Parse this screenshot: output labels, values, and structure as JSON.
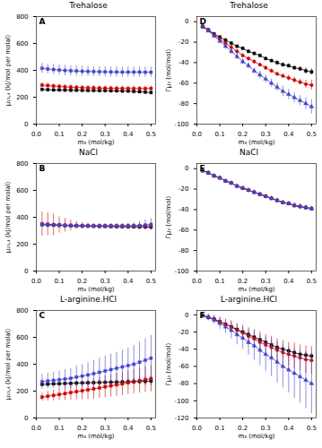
{
  "chart_data": [
    {
      "type": "line",
      "title": "Trehalose",
      "annotation": "A",
      "xlabel": "m₃ (mol/kg)",
      "ylabel": "μ₂₃,₄ (kJ/mol per molal)",
      "x": [
        0.025,
        0.05,
        0.075,
        0.1,
        0.125,
        0.15,
        0.175,
        0.2,
        0.225,
        0.25,
        0.275,
        0.3,
        0.325,
        0.35,
        0.375,
        0.4,
        0.425,
        0.45,
        0.475,
        0.5
      ],
      "xlim": [
        0.0,
        0.52
      ],
      "xticks": [
        {
          "value": 0,
          "label": "0.0"
        },
        0.1,
        0.2,
        0.3,
        0.4,
        0.5
      ],
      "ylim": [
        0,
        800
      ],
      "yticks": [
        0,
        200,
        400,
        600,
        800
      ],
      "grid": false,
      "series": [
        {
          "color": "#000000",
          "marker": "square",
          "values": [
            258,
            256,
            254,
            254,
            253,
            252,
            252,
            251,
            250,
            250,
            249,
            249,
            248,
            247,
            246,
            246,
            243,
            241,
            238,
            235
          ],
          "errors": [
            8,
            7,
            7,
            7,
            7,
            7,
            7,
            7,
            7,
            7,
            7,
            7,
            7,
            7,
            7,
            7,
            7,
            7,
            7,
            7
          ]
        },
        {
          "color": "#CC0000",
          "marker": "square",
          "values": [
            290,
            287,
            283,
            280,
            277,
            275,
            273,
            271,
            270,
            269,
            268,
            267,
            266,
            266,
            265,
            265,
            264,
            264,
            264,
            265
          ],
          "errors": [
            18,
            18,
            18,
            18,
            18,
            18,
            18,
            18,
            18,
            18,
            18,
            18,
            18,
            18,
            18,
            18,
            18,
            18,
            18,
            20
          ]
        },
        {
          "color": "#4444CC",
          "marker": "square",
          "values": [
            415,
            410,
            406,
            402,
            399,
            397,
            395,
            393,
            392,
            391,
            390,
            389,
            388,
            388,
            387,
            387,
            387,
            387,
            386,
            386
          ],
          "errors": [
            38,
            38,
            38,
            38,
            38,
            38,
            38,
            38,
            38,
            38,
            38,
            38,
            38,
            38,
            38,
            38,
            38,
            38,
            38,
            38
          ]
        }
      ]
    },
    {
      "type": "line",
      "title": "NaCl",
      "annotation": "B",
      "xlabel": "m₃ (mol/kg)",
      "ylabel": "μ₂₃,₄ (kJ/mol per molal)",
      "x": [
        0.025,
        0.05,
        0.075,
        0.1,
        0.125,
        0.15,
        0.175,
        0.2,
        0.225,
        0.25,
        0.275,
        0.3,
        0.325,
        0.35,
        0.375,
        0.4,
        0.425,
        0.45,
        0.475,
        0.5
      ],
      "xlim": [
        0.0,
        0.52
      ],
      "xticks": [
        {
          "value": 0,
          "label": "0.0"
        },
        0.1,
        0.2,
        0.3,
        0.4,
        0.5
      ],
      "ylim": [
        0,
        800
      ],
      "yticks": [
        0,
        200,
        400,
        600,
        800
      ],
      "grid": false,
      "series": [
        {
          "color": "#000000",
          "marker": "square",
          "values": [
            345,
            343,
            341,
            340,
            338,
            337,
            336,
            335,
            334,
            333,
            332,
            332,
            331,
            330,
            330,
            329,
            329,
            328,
            328,
            327
          ],
          "errors": [
            8,
            8,
            8,
            8,
            8,
            8,
            8,
            8,
            8,
            8,
            8,
            8,
            8,
            8,
            8,
            8,
            8,
            8,
            8,
            8
          ]
        },
        {
          "color": "#CC0000",
          "marker": "square",
          "values": [
            350,
            348,
            345,
            343,
            341,
            340,
            339,
            338,
            337,
            337,
            337,
            337,
            337,
            337,
            337,
            337,
            337,
            337,
            337,
            337
          ],
          "errors": [
            90,
            85,
            80,
            60,
            50,
            40,
            30,
            25,
            20,
            17,
            15,
            15,
            15,
            15,
            15,
            15,
            15,
            15,
            15,
            15
          ]
        },
        {
          "color": "#4444CC",
          "marker": "square",
          "values": [
            348,
            346,
            344,
            342,
            340,
            338,
            337,
            336,
            336,
            335,
            335,
            335,
            335,
            335,
            335,
            335,
            336,
            338,
            342,
            347
          ],
          "errors": [
            15,
            15,
            15,
            15,
            15,
            15,
            15,
            15,
            15,
            15,
            15,
            15,
            15,
            15,
            15,
            18,
            22,
            30,
            38,
            45
          ]
        }
      ]
    },
    {
      "type": "line",
      "title": "L-arginine.HCl",
      "annotation": "C",
      "xlabel": "m₃ (mol/kg)",
      "ylabel": "μ₂₃,₄ (kJ/mol per molal)",
      "x": [
        0.025,
        0.05,
        0.075,
        0.1,
        0.125,
        0.15,
        0.175,
        0.2,
        0.225,
        0.25,
        0.275,
        0.3,
        0.325,
        0.35,
        0.375,
        0.4,
        0.425,
        0.45,
        0.475,
        0.5
      ],
      "xlim": [
        0.0,
        0.52
      ],
      "xticks": [
        {
          "value": 0,
          "label": "0.0"
        },
        0.1,
        0.2,
        0.3,
        0.4,
        0.5
      ],
      "ylim": [
        0,
        800
      ],
      "yticks": [
        0,
        200,
        400,
        600,
        800
      ],
      "grid": false,
      "series": [
        {
          "color": "#000000",
          "marker": "square",
          "values": [
            250,
            252,
            254,
            255,
            257,
            258,
            260,
            261,
            262,
            263,
            264,
            265,
            266,
            267,
            268,
            270,
            271,
            272,
            273,
            275
          ],
          "errors": [
            12,
            12,
            12,
            12,
            12,
            12,
            12,
            12,
            12,
            12,
            12,
            12,
            12,
            12,
            15,
            18,
            22,
            26,
            30,
            35
          ]
        },
        {
          "color": "#CC0000",
          "marker": "square",
          "values": [
            155,
            162,
            168,
            175,
            182,
            189,
            196,
            203,
            210,
            217,
            224,
            232,
            239,
            247,
            254,
            262,
            270,
            277,
            285,
            293
          ],
          "errors": [
            30,
            35,
            40,
            45,
            50,
            55,
            60,
            65,
            70,
            75,
            78,
            80,
            82,
            84,
            86,
            88,
            90,
            92,
            95,
            98
          ]
        },
        {
          "color": "#4444CC",
          "marker": "square",
          "values": [
            270,
            275,
            280,
            285,
            290,
            295,
            305,
            312,
            320,
            330,
            340,
            350,
            360,
            370,
            380,
            390,
            400,
            415,
            430,
            445
          ],
          "errors": [
            55,
            58,
            60,
            65,
            70,
            75,
            80,
            85,
            90,
            100,
            105,
            110,
            115,
            120,
            125,
            130,
            140,
            150,
            160,
            170
          ]
        }
      ]
    },
    {
      "type": "line",
      "title": "Trehalose",
      "annotation": "D",
      "xlabel": "m₃ (mol/kg)",
      "ylabel": "Γμ₃ (mol/mol)",
      "x": [
        0.025,
        0.05,
        0.075,
        0.1,
        0.125,
        0.15,
        0.175,
        0.2,
        0.225,
        0.25,
        0.275,
        0.3,
        0.325,
        0.35,
        0.375,
        0.4,
        0.425,
        0.45,
        0.475,
        0.5
      ],
      "xlim": [
        0.0,
        0.52
      ],
      "xticks": [
        {
          "value": 0,
          "label": "0.0"
        },
        0.1,
        0.2,
        0.3,
        0.4,
        0.5
      ],
      "ylim": [
        -100,
        5
      ],
      "yticks": [
        -100,
        -80,
        -60,
        -40,
        -20,
        0
      ],
      "grid": false,
      "series": [
        {
          "color": "#000000",
          "marker": "square",
          "values": [
            -5,
            -8,
            -12,
            -15,
            -18,
            -21,
            -24,
            -26,
            -29,
            -31,
            -33,
            -36,
            -38,
            -40,
            -42,
            -43,
            -45,
            -46,
            -48,
            -49
          ],
          "errors": [
            1.5,
            1.5,
            1.5,
            1.5,
            1.5,
            1.5,
            1.5,
            1.5,
            1.5,
            1.5,
            1.5,
            1.5,
            1.5,
            2,
            2,
            2,
            2,
            2,
            3,
            3
          ]
        },
        {
          "color": "#CC0000",
          "marker": "circle",
          "values": [
            -4,
            -8,
            -13,
            -17,
            -21,
            -25,
            -29,
            -33,
            -36,
            -39,
            -42,
            -45,
            -48,
            -51,
            -53,
            -55,
            -57,
            -59,
            -61,
            -62
          ],
          "errors": [
            1.5,
            1.5,
            1.5,
            1.5,
            2,
            2,
            2,
            2,
            2,
            2,
            2,
            2,
            2,
            2,
            2,
            3,
            3,
            3,
            4,
            5
          ]
        },
        {
          "color": "#4444CC",
          "marker": "triangle",
          "values": [
            -4,
            -9,
            -14,
            -19,
            -24,
            -29,
            -34,
            -39,
            -43,
            -48,
            -52,
            -56,
            -60,
            -64,
            -68,
            -71,
            -74,
            -77,
            -80,
            -83
          ],
          "errors": [
            2,
            2,
            2,
            2,
            3,
            3,
            3,
            3,
            3,
            3,
            4,
            4,
            4,
            4,
            5,
            5,
            5,
            5,
            6,
            7
          ]
        }
      ]
    },
    {
      "type": "line",
      "title": "NaCl",
      "annotation": "E",
      "xlabel": "m₃ (mol/kg)",
      "ylabel": "Γμ₃ (mol/mol)",
      "x": [
        0.025,
        0.05,
        0.075,
        0.1,
        0.125,
        0.15,
        0.175,
        0.2,
        0.225,
        0.25,
        0.275,
        0.3,
        0.325,
        0.35,
        0.375,
        0.4,
        0.425,
        0.45,
        0.475,
        0.5
      ],
      "xlim": [
        0.0,
        0.52
      ],
      "xticks": [
        {
          "value": 0,
          "label": "0.0"
        },
        0.1,
        0.2,
        0.3,
        0.4,
        0.5
      ],
      "ylim": [
        -100,
        5
      ],
      "yticks": [
        -100,
        -80,
        -60,
        -40,
        -20,
        0
      ],
      "grid": false,
      "series": [
        {
          "color": "#000000",
          "marker": "square",
          "values": [
            -2,
            -4,
            -7,
            -9,
            -12,
            -14,
            -17,
            -19,
            -21,
            -23,
            -25,
            -27,
            -29,
            -31,
            -33,
            -34,
            -36,
            -37,
            -38,
            -39
          ],
          "errors": [
            1,
            1,
            1,
            1,
            1,
            1,
            1,
            1,
            1,
            1,
            1,
            1,
            1,
            1,
            1,
            1,
            2,
            2,
            2,
            2
          ]
        },
        {
          "color": "#CC0000",
          "marker": "circle",
          "values": [
            -2,
            -4,
            -7,
            -9,
            -12,
            -14,
            -17,
            -19,
            -21,
            -23,
            -25,
            -27,
            -29,
            -31,
            -33,
            -34,
            -36,
            -37,
            -38,
            -39
          ],
          "errors": [
            1,
            1,
            1,
            1,
            1,
            1,
            1,
            1,
            1,
            1,
            1,
            1,
            1,
            1,
            1,
            1,
            2,
            2,
            2,
            2
          ]
        },
        {
          "color": "#4444CC",
          "marker": "triangle",
          "values": [
            -2,
            -4,
            -7,
            -9,
            -12,
            -14,
            -17,
            -19,
            -21,
            -23,
            -25,
            -27,
            -29,
            -31,
            -33,
            -34,
            -36,
            -37,
            -38,
            -39
          ],
          "errors": [
            1,
            1,
            1,
            1,
            1,
            1,
            1,
            1,
            1,
            1,
            1,
            1,
            1,
            1,
            1,
            1,
            2,
            2,
            2,
            2
          ]
        }
      ]
    },
    {
      "type": "line",
      "title": "L-arginine.HCl",
      "annotation": "F",
      "xlabel": "m₃ (mol/kg)",
      "ylabel": "Γμ₃ (mol/mol)",
      "x": [
        0.025,
        0.05,
        0.075,
        0.1,
        0.125,
        0.15,
        0.175,
        0.2,
        0.225,
        0.25,
        0.275,
        0.3,
        0.325,
        0.35,
        0.375,
        0.4,
        0.425,
        0.45,
        0.475,
        0.5
      ],
      "xlim": [
        0.0,
        0.52
      ],
      "xticks": [
        {
          "value": 0,
          "label": "0.0"
        },
        0.1,
        0.2,
        0.3,
        0.4,
        0.5
      ],
      "ylim": [
        -120,
        5
      ],
      "yticks": [
        -120,
        -100,
        -80,
        -60,
        -40,
        -20,
        0
      ],
      "grid": false,
      "series": [
        {
          "color": "#000000",
          "marker": "square",
          "values": [
            -1,
            -3,
            -5,
            -8,
            -11,
            -14,
            -17,
            -20,
            -23,
            -26,
            -29,
            -32,
            -35,
            -38,
            -40,
            -42,
            -44,
            -46,
            -47,
            -48
          ],
          "errors": [
            1,
            1,
            1,
            1,
            1,
            1,
            1,
            2,
            2,
            2,
            2,
            2,
            2,
            2,
            2,
            2,
            2,
            2,
            3,
            3
          ]
        },
        {
          "color": "#CC0000",
          "marker": "circle",
          "values": [
            -1,
            -3,
            -5,
            -8,
            -11,
            -14,
            -18,
            -21,
            -25,
            -28,
            -32,
            -35,
            -38,
            -41,
            -44,
            -46,
            -48,
            -50,
            -52,
            -53
          ],
          "errors": [
            2,
            3,
            4,
            5,
            6,
            7,
            8,
            9,
            10,
            11,
            12,
            12,
            13,
            13,
            14,
            14,
            15,
            15,
            16,
            16
          ]
        },
        {
          "color": "#4444CC",
          "marker": "triangle",
          "values": [
            -1,
            -3,
            -6,
            -10,
            -14,
            -18,
            -23,
            -27,
            -32,
            -36,
            -41,
            -46,
            -50,
            -55,
            -60,
            -64,
            -68,
            -72,
            -76,
            -80
          ],
          "errors": [
            3,
            4,
            5,
            7,
            8,
            10,
            12,
            13,
            15,
            17,
            18,
            20,
            22,
            24,
            25,
            27,
            29,
            31,
            33,
            35
          ]
        }
      ]
    }
  ]
}
